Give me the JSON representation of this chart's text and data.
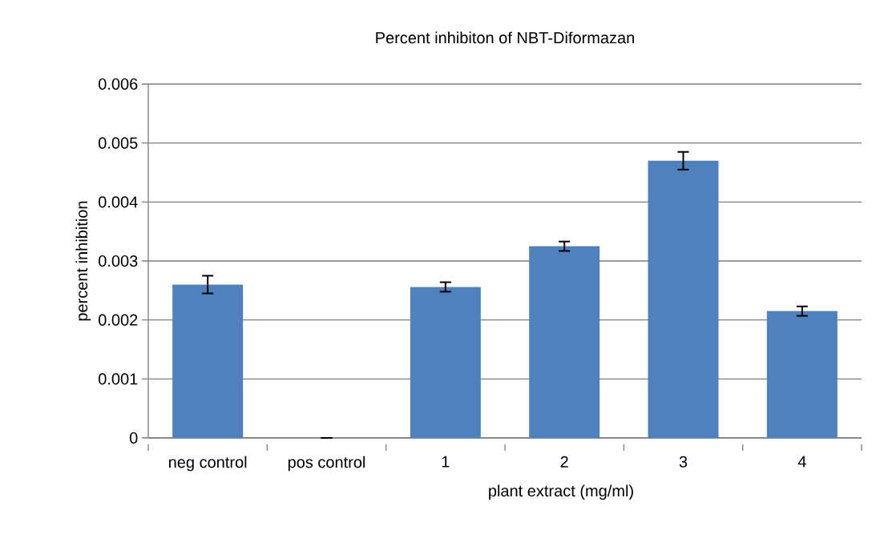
{
  "chart_data": {
    "type": "bar",
    "title": "Percent  inhibiton  of NBT-Diformazan",
    "xlabel": "plant  extract (mg/ml)",
    "ylabel": "percent  inhibition",
    "categories": [
      "neg control",
      "pos control",
      "1",
      "2",
      "3",
      "4"
    ],
    "values": [
      0.0026,
      0,
      0.00256,
      0.00325,
      0.0047,
      0.00215
    ],
    "errors": [
      0.00015,
      0,
      8e-05,
      8e-05,
      0.00015,
      8e-05
    ],
    "color": "#4f81bd",
    "ylim": [
      0,
      0.006
    ],
    "yticks": [
      {
        "value": 0,
        "label": "0"
      },
      {
        "value": 0.001,
        "label": "0.001"
      },
      {
        "value": 0.002,
        "label": "0.002"
      },
      {
        "value": 0.003,
        "label": "0.003"
      },
      {
        "value": 0.004,
        "label": "0.004"
      },
      {
        "value": 0.005,
        "label": "0.005"
      },
      {
        "value": 0.006,
        "label": "0.006"
      }
    ],
    "grid": "y"
  }
}
